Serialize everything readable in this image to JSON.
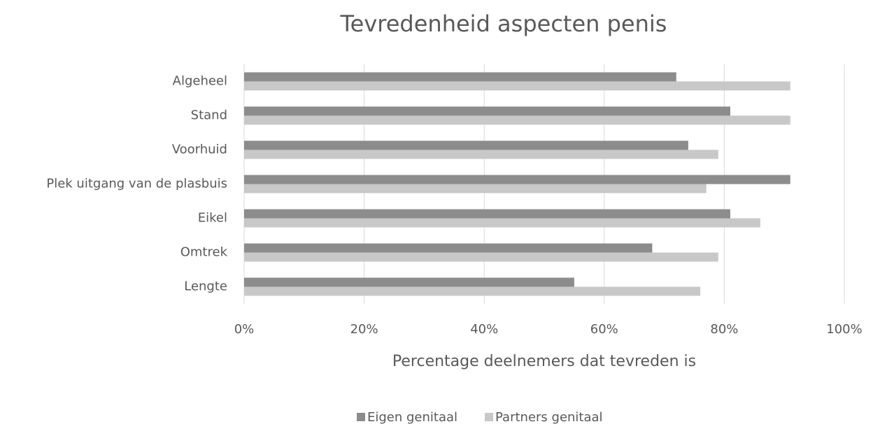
{
  "chart_data": {
    "type": "bar",
    "orientation": "horizontal",
    "title": "Tevredenheid aspecten penis",
    "x_label": "Percentage deelnemers dat tevreden is",
    "categories": [
      "Algeheel",
      "Stand",
      "Voorhuid",
      "Plek uitgang van de plasbuis",
      "Eikel",
      "Omtrek",
      "Lengte"
    ],
    "series": [
      {
        "name": "Eigen genitaal",
        "color": "#8c8c8c",
        "values": [
          72,
          81,
          74,
          91,
          81,
          68,
          55
        ]
      },
      {
        "name": "Partners genitaal",
        "color": "#c8c8c8",
        "values": [
          91,
          91,
          79,
          77,
          86,
          79,
          76
        ]
      }
    ],
    "xlim": [
      0,
      100
    ],
    "xticks": [
      {
        "value": 0,
        "label": "0%"
      },
      {
        "value": 20,
        "label": "20%"
      },
      {
        "value": 40,
        "label": "40%"
      },
      {
        "value": 60,
        "label": "60%"
      },
      {
        "value": 80,
        "label": "80%"
      },
      {
        "value": 100,
        "label": "100%"
      }
    ],
    "grid": true,
    "legend": "bottom"
  }
}
